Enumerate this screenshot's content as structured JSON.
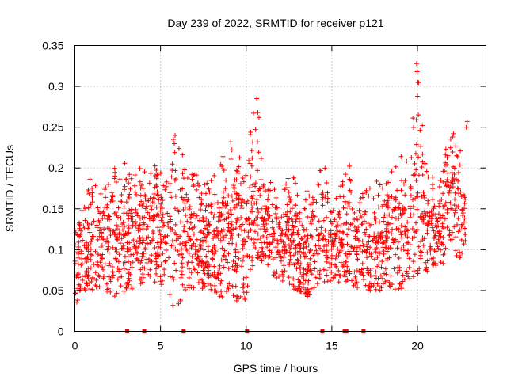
{
  "chart_data": {
    "type": "scatter",
    "title": "Day 239 of 2022, SRMTID for receiver p121",
    "xlabel": "GPS time / hours",
    "ylabel": "SRMTID / TECUs",
    "xlim": [
      0,
      24
    ],
    "ylim": [
      0,
      0.35
    ],
    "grid": true,
    "marker": "+",
    "color": "#ff0000",
    "x_ticks": [
      0,
      5,
      10,
      15,
      20
    ],
    "x_tick_labels": [
      "0",
      "5",
      "10",
      "15",
      "20"
    ],
    "y_ticks": [
      0,
      0.05,
      0.1,
      0.15,
      0.2,
      0.25,
      0.3,
      0.35
    ],
    "y_tick_labels": [
      "0",
      "0.05",
      "0.1",
      "0.15",
      "0.2",
      "0.25",
      "0.3",
      "0.35"
    ],
    "zero_markers_x": [
      3.05,
      4.05,
      6.35,
      10.05,
      14.45,
      15.75,
      15.85,
      16.85
    ],
    "envelope": [
      [
        0.0,
        0.03,
        0.16
      ],
      [
        0.5,
        0.05,
        0.15
      ],
      [
        1.0,
        0.05,
        0.2
      ],
      [
        1.5,
        0.05,
        0.17
      ],
      [
        2.0,
        0.04,
        0.2
      ],
      [
        2.5,
        0.04,
        0.2
      ],
      [
        3.0,
        0.05,
        0.21
      ],
      [
        3.5,
        0.05,
        0.21
      ],
      [
        4.0,
        0.06,
        0.2
      ],
      [
        4.5,
        0.06,
        0.22
      ],
      [
        5.0,
        0.06,
        0.21
      ],
      [
        5.5,
        0.03,
        0.24
      ],
      [
        6.0,
        0.03,
        0.23
      ],
      [
        6.5,
        0.05,
        0.21
      ],
      [
        7.0,
        0.05,
        0.2
      ],
      [
        7.5,
        0.05,
        0.18
      ],
      [
        8.0,
        0.05,
        0.19
      ],
      [
        8.5,
        0.04,
        0.21
      ],
      [
        9.0,
        0.05,
        0.23
      ],
      [
        9.5,
        0.03,
        0.22
      ],
      [
        10.0,
        0.04,
        0.21
      ],
      [
        10.5,
        0.09,
        0.28
      ],
      [
        11.0,
        0.08,
        0.2
      ],
      [
        11.5,
        0.07,
        0.18
      ],
      [
        12.0,
        0.06,
        0.19
      ],
      [
        12.5,
        0.05,
        0.2
      ],
      [
        13.0,
        0.05,
        0.18
      ],
      [
        13.5,
        0.04,
        0.18
      ],
      [
        14.0,
        0.05,
        0.19
      ],
      [
        14.5,
        0.06,
        0.21
      ],
      [
        15.0,
        0.06,
        0.16
      ],
      [
        15.5,
        0.06,
        0.18
      ],
      [
        16.0,
        0.06,
        0.21
      ],
      [
        16.5,
        0.05,
        0.17
      ],
      [
        17.0,
        0.05,
        0.18
      ],
      [
        17.5,
        0.05,
        0.18
      ],
      [
        18.0,
        0.05,
        0.2
      ],
      [
        18.5,
        0.05,
        0.2
      ],
      [
        19.0,
        0.05,
        0.22
      ],
      [
        19.5,
        0.06,
        0.21
      ],
      [
        20.0,
        0.07,
        0.33
      ],
      [
        20.5,
        0.07,
        0.2
      ],
      [
        21.0,
        0.08,
        0.19
      ],
      [
        21.5,
        0.08,
        0.22
      ],
      [
        22.0,
        0.09,
        0.24
      ],
      [
        22.5,
        0.09,
        0.25
      ],
      [
        22.8,
        0.09,
        0.21
      ]
    ],
    "peaks": [
      [
        10.62,
        0.285
      ],
      [
        10.68,
        0.268
      ],
      [
        10.75,
        0.262
      ],
      [
        19.95,
        0.328
      ],
      [
        19.98,
        0.318
      ],
      [
        20.02,
        0.305
      ],
      [
        20.0,
        0.288
      ],
      [
        20.05,
        0.265
      ],
      [
        5.85,
        0.24
      ],
      [
        5.75,
        0.235
      ],
      [
        22.9,
        0.257
      ],
      [
        22.85,
        0.25
      ],
      [
        22.1,
        0.242
      ],
      [
        22.05,
        0.238
      ],
      [
        9.1,
        0.232
      ]
    ],
    "dense_points_per_hour": 95,
    "seed": 239
  }
}
